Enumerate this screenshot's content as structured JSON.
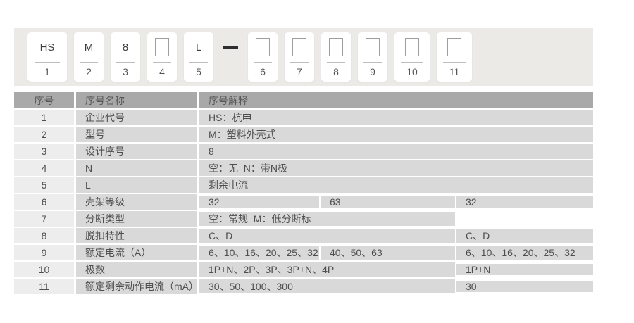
{
  "colors": {
    "band_background": "#ebeae7",
    "box_background": "#ffffff",
    "table_header_background": "#a9a9a9",
    "row_number_cell_background": "#ededed",
    "row_cell_background": "#d9d9d9",
    "text": "#4e4e4e",
    "dash": "#2e2e2e"
  },
  "code": {
    "boxes": [
      {
        "value": "HS",
        "num": "1",
        "empty": false
      },
      {
        "value": "M",
        "num": "2",
        "empty": false
      },
      {
        "value": "8",
        "num": "3",
        "empty": false
      },
      {
        "value": "",
        "num": "4",
        "empty": true
      },
      {
        "value": "L",
        "num": "5",
        "empty": false
      },
      {
        "value": "",
        "num": "6",
        "empty": true
      },
      {
        "value": "",
        "num": "7",
        "empty": true
      },
      {
        "value": "",
        "num": "8",
        "empty": true
      },
      {
        "value": "",
        "num": "9",
        "empty": true
      },
      {
        "value": "",
        "num": "10",
        "empty": true
      },
      {
        "value": "",
        "num": "11",
        "empty": true
      }
    ]
  },
  "table": {
    "header": {
      "no_label": "序号",
      "name_label": "序号名称",
      "desc_label": "序号解释"
    },
    "rows": [
      {
        "no": "1",
        "name": "企业代号",
        "desc": "HS：杭申"
      },
      {
        "no": "2",
        "name": "型号",
        "desc": "M：塑料外壳式"
      },
      {
        "no": "3",
        "name": "设计序号",
        "desc": "8"
      },
      {
        "no": "4",
        "name": "N",
        "desc": "空：无  N：带N极"
      },
      {
        "no": "5",
        "name": "L",
        "desc": "剩余电流"
      },
      {
        "no": "6",
        "name": "壳架等级",
        "desc_a": "32",
        "desc_b": "63",
        "desc_c": "32"
      },
      {
        "no": "7",
        "name": "分断类型",
        "desc_ab": "空：常规  M：低分断标",
        "desc_c": ""
      },
      {
        "no": "8",
        "name": "脱扣特性",
        "desc_ab": "C、D",
        "desc_c": "C、D"
      },
      {
        "no": "9",
        "name": "额定电流（A）",
        "desc_a": "6、10、16、20、25、32",
        "desc_b": "40、50、63",
        "desc_c": "6、10、16、20、25、32"
      },
      {
        "no": "10",
        "name": "极数",
        "desc_ab": "1P+N、2P、3P、3P+N、4P",
        "desc_c": "1P+N"
      },
      {
        "no": "11",
        "name": "额定剩余动作电流（mA）",
        "desc_ab": "30、50、100、300",
        "desc_c": "30"
      }
    ]
  }
}
